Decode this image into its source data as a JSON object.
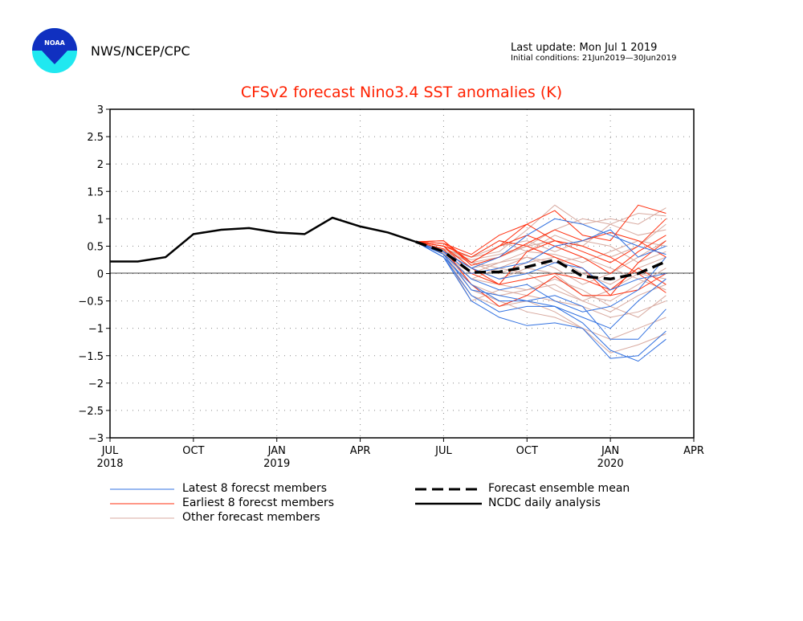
{
  "header": {
    "logo_text": "NOAA",
    "org": "NWS/NCEP/CPC",
    "last_update": "Last update: Mon Jul 1 2019",
    "initial_conditions": "Initial conditions: 21Jun2019—30Jun2019"
  },
  "chart_data": {
    "type": "line",
    "title": "CFSv2 forecast Nino3.4 SST anomalies (K)",
    "xlabel": "",
    "ylabel": "",
    "ylim": [
      -3,
      3
    ],
    "yticks": [
      "3",
      "2.5",
      "2",
      "1.5",
      "1",
      "0.5",
      "0",
      "−0.5",
      "−1",
      "−1.5",
      "−2",
      "−2.5",
      "−3"
    ],
    "xticks": [
      {
        "month": "JUL",
        "year": "2018"
      },
      {
        "month": "OCT",
        "year": ""
      },
      {
        "month": "JAN",
        "year": "2019"
      },
      {
        "month": "APR",
        "year": ""
      },
      {
        "month": "JUL",
        "year": ""
      },
      {
        "month": "OCT",
        "year": ""
      },
      {
        "month": "JAN",
        "year": "2020"
      },
      {
        "month": "APR",
        "year": ""
      }
    ],
    "xlim": [
      "2018-07",
      "2020-04"
    ],
    "grid": "dotted",
    "colors": {
      "latest": "#3070e0",
      "earliest": "#ff3010",
      "other": "#d8aaa0",
      "analysis": "#000000",
      "mean": "#000000"
    },
    "analysis": {
      "name": "NCDC daily analysis",
      "x": [
        "2018-07",
        "2018-08",
        "2018-09",
        "2018-10",
        "2018-11",
        "2018-12",
        "2019-01",
        "2019-02",
        "2019-03",
        "2019-04",
        "2019-05",
        "2019-06"
      ],
      "y": [
        0.22,
        0.22,
        0.3,
        0.72,
        0.8,
        0.83,
        0.75,
        0.72,
        1.02,
        0.86,
        0.75,
        0.58
      ]
    },
    "forecast_x": [
      "2019-06",
      "2019-07",
      "2019-08",
      "2019-09",
      "2019-10",
      "2019-11",
      "2019-12",
      "2020-01",
      "2020-02",
      "2020-03"
    ],
    "mean": {
      "name": "Forecast ensemble mean",
      "y": [
        0.58,
        0.4,
        0.02,
        0.03,
        0.12,
        0.25,
        -0.05,
        -0.1,
        0.0,
        0.22
      ]
    },
    "latest": {
      "name": "Latest 8 forecst members",
      "members": [
        [
          0.58,
          0.4,
          0.1,
          0.3,
          0.7,
          1.0,
          0.9,
          0.7,
          0.5,
          0.35
        ],
        [
          0.58,
          0.3,
          -0.2,
          -0.5,
          -0.5,
          -0.6,
          -0.9,
          -1.4,
          -1.6,
          -1.2
        ],
        [
          0.58,
          0.3,
          -0.5,
          -0.8,
          -0.95,
          -0.9,
          -1.0,
          -1.55,
          -1.5,
          -1.05
        ],
        [
          0.58,
          0.35,
          -0.3,
          -0.4,
          -0.5,
          -0.4,
          -0.6,
          -1.2,
          -1.2,
          -0.65
        ],
        [
          0.58,
          0.4,
          0.0,
          0.1,
          0.2,
          0.5,
          0.6,
          0.8,
          0.3,
          0.5
        ],
        [
          0.58,
          0.3,
          -0.4,
          -0.7,
          -0.6,
          -0.6,
          -0.8,
          -1.0,
          -0.5,
          -0.1
        ],
        [
          0.58,
          0.4,
          0.1,
          -0.1,
          0.0,
          0.2,
          0.1,
          -0.3,
          -0.1,
          0.0
        ],
        [
          0.58,
          0.35,
          -0.1,
          -0.3,
          -0.2,
          -0.5,
          -0.7,
          -0.6,
          -0.3,
          0.3
        ]
      ]
    },
    "earliest": {
      "name": "Earliest 8 forecst members",
      "members": [
        [
          0.58,
          0.6,
          0.2,
          0.5,
          0.9,
          1.15,
          0.7,
          0.6,
          1.25,
          1.1
        ],
        [
          0.58,
          0.55,
          0.35,
          0.7,
          0.9,
          0.6,
          0.4,
          0.2,
          0.5,
          1.0
        ],
        [
          0.58,
          0.5,
          0.0,
          -0.2,
          0.4,
          0.6,
          0.5,
          0.3,
          0.0,
          -0.35
        ],
        [
          0.58,
          0.5,
          0.3,
          0.6,
          0.5,
          0.3,
          0.1,
          -0.4,
          0.2,
          0.6
        ],
        [
          0.58,
          0.45,
          -0.2,
          -0.6,
          -0.4,
          -0.05,
          -0.4,
          -0.4,
          -0.3,
          0.0
        ],
        [
          0.58,
          0.6,
          0.15,
          0.3,
          0.55,
          0.8,
          0.6,
          0.75,
          0.6,
          0.3
        ],
        [
          0.58,
          0.5,
          0.1,
          -0.2,
          -0.1,
          0.0,
          -0.1,
          -0.3,
          0.1,
          -0.2
        ],
        [
          0.58,
          0.55,
          0.2,
          0.5,
          0.7,
          0.5,
          0.3,
          0.0,
          0.4,
          0.7
        ]
      ]
    },
    "other": {
      "name": "Other forecast members",
      "members": [
        [
          0.58,
          0.5,
          0.3,
          0.4,
          0.8,
          1.25,
          0.9,
          1.0,
          0.9,
          1.2
        ],
        [
          0.58,
          0.45,
          0.2,
          0.3,
          0.5,
          0.6,
          0.5,
          0.9,
          1.1,
          1.05
        ],
        [
          0.58,
          0.4,
          0.1,
          0.2,
          0.4,
          0.35,
          0.2,
          0.4,
          0.6,
          0.5
        ],
        [
          0.58,
          0.4,
          -0.1,
          -0.2,
          -0.3,
          -0.2,
          -0.5,
          -0.7,
          -0.4,
          -0.2
        ],
        [
          0.58,
          0.35,
          -0.4,
          -0.6,
          -0.5,
          -0.7,
          -1.0,
          -1.45,
          -1.3,
          -1.1
        ],
        [
          0.58,
          0.4,
          0.2,
          0.0,
          0.2,
          0.3,
          0.0,
          -0.2,
          0.1,
          0.3
        ],
        [
          0.58,
          0.45,
          0.3,
          0.5,
          0.6,
          0.4,
          0.6,
          0.5,
          0.2,
          0.4
        ],
        [
          0.58,
          0.4,
          -0.2,
          -0.4,
          -0.3,
          -0.1,
          -0.3,
          -0.6,
          -0.8,
          -0.4
        ],
        [
          0.58,
          0.35,
          0.0,
          0.2,
          0.3,
          0.1,
          -0.2,
          0.0,
          0.3,
          0.6
        ],
        [
          0.58,
          0.4,
          -0.3,
          -0.5,
          -0.7,
          -0.8,
          -1.0,
          -1.2,
          -1.0,
          -0.8
        ],
        [
          0.58,
          0.45,
          0.25,
          0.35,
          0.5,
          0.8,
          1.0,
          0.9,
          0.7,
          0.8
        ],
        [
          0.58,
          0.4,
          0.1,
          -0.1,
          0.1,
          0.0,
          -0.4,
          -0.5,
          -0.2,
          0.1
        ],
        [
          0.58,
          0.38,
          -0.1,
          0.1,
          0.3,
          0.2,
          0.3,
          0.1,
          -0.1,
          -0.3
        ],
        [
          0.58,
          0.42,
          0.2,
          0.1,
          0.0,
          -0.3,
          -0.5,
          -0.3,
          0.0,
          -0.1
        ],
        [
          0.58,
          0.36,
          -0.5,
          -0.3,
          -0.4,
          -0.5,
          -0.6,
          -0.8,
          -0.7,
          -0.5
        ],
        [
          0.58,
          0.44,
          0.3,
          0.6,
          0.4,
          0.7,
          0.5,
          0.3,
          0.5,
          0.9
        ]
      ]
    }
  },
  "legend": {
    "latest": "Latest 8 forecst members",
    "earliest": "Earliest 8 forecst members",
    "other": "Other forecast members",
    "mean": "Forecast ensemble mean",
    "analysis": "NCDC daily analysis"
  }
}
